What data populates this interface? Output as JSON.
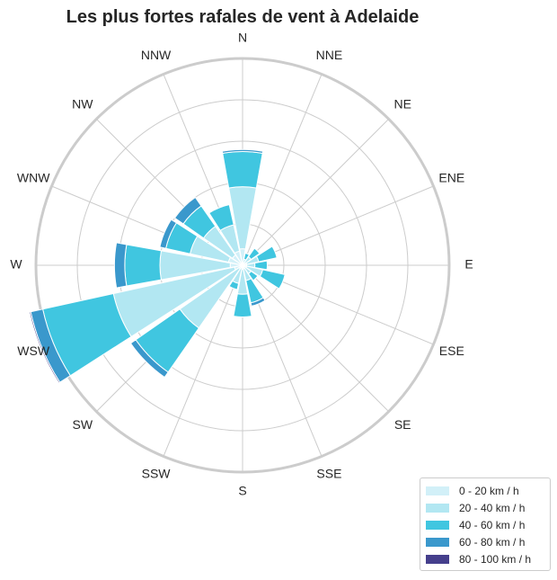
{
  "chart_data": {
    "type": "windrose",
    "title": "Les plus fortes rafales de vent à Adelaide",
    "directions": [
      "N",
      "NNE",
      "NE",
      "ENE",
      "E",
      "ESE",
      "SE",
      "SSE",
      "S",
      "SSW",
      "SW",
      "WSW",
      "W",
      "WNW",
      "NW",
      "NNW"
    ],
    "radial_range": [
      0,
      5
    ],
    "grid": true,
    "legend_position": "bottom-right",
    "series": [
      {
        "name": "0 - 20 km / h",
        "color": "#d2f0f8",
        "values": [
          0.4,
          0.05,
          0.05,
          0.1,
          0.1,
          0.1,
          0.05,
          0.08,
          0.1,
          0.05,
          0.1,
          0.2,
          0.3,
          0.35,
          0.3,
          0.35
        ]
      },
      {
        "name": "20 - 40 km / h",
        "color": "#b2e7f2",
        "values": [
          1.5,
          0.1,
          0.2,
          0.3,
          0.2,
          0.4,
          0.2,
          0.3,
          0.6,
          0.4,
          1.75,
          3.0,
          1.7,
          0.95,
          0.85,
          0.65
        ]
      },
      {
        "name": "40 - 60 km / h",
        "color": "#40c6e0",
        "values": [
          0.85,
          0.15,
          0.25,
          0.45,
          0.3,
          0.55,
          0.2,
          0.55,
          0.55,
          0.15,
          1.3,
          1.75,
          0.85,
          0.6,
          0.6,
          0.5
        ]
      },
      {
        "name": "60 - 80 km / h",
        "color": "#3a98cc",
        "values": [
          0.05,
          0.0,
          0.0,
          0.0,
          0.0,
          0.0,
          0.0,
          0.08,
          0.0,
          0.0,
          0.15,
          0.3,
          0.25,
          0.15,
          0.25,
          0.0
        ]
      },
      {
        "name": "80 - 100 km / h",
        "color": "#453f8c",
        "values": [
          0.0,
          0.0,
          0.0,
          0.0,
          0.0,
          0.0,
          0.0,
          0.0,
          0.0,
          0.0,
          0.0,
          0.03,
          0.0,
          0.0,
          0.0,
          0.0
        ]
      }
    ]
  }
}
